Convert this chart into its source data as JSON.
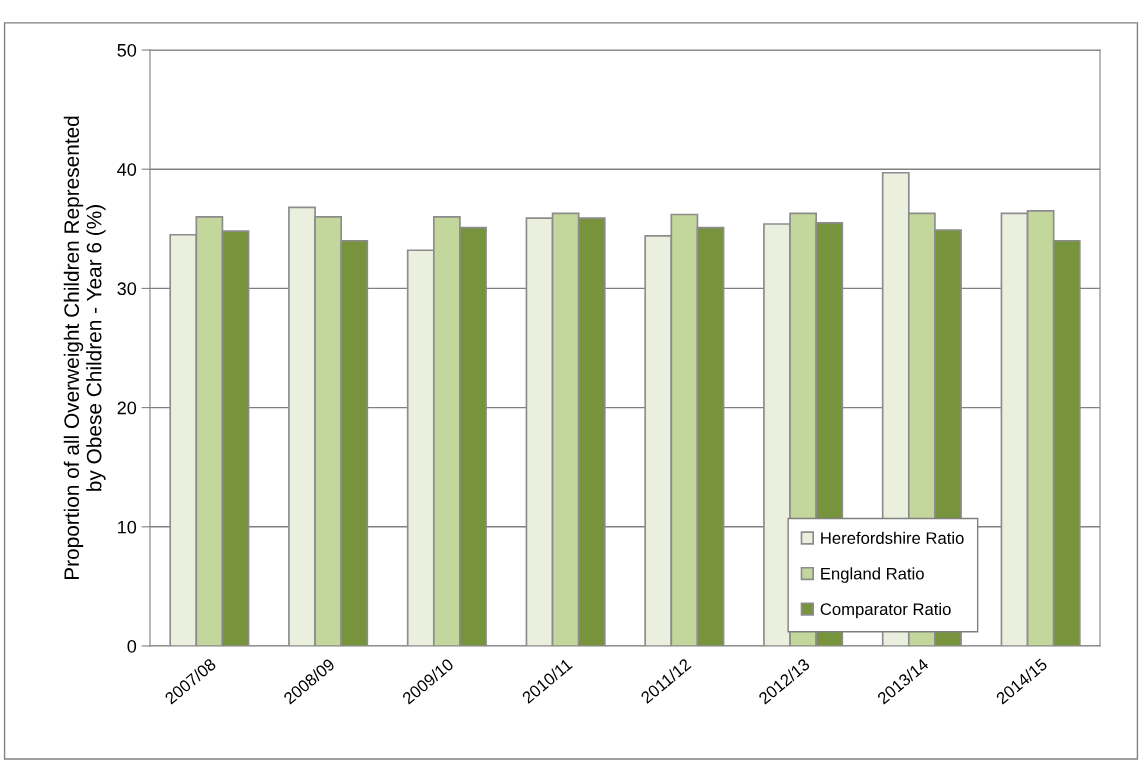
{
  "chart_data": {
    "type": "bar",
    "ylabel": "Proportion of all Overweight Children Represented\nby Obese Children - Year 6 (%)",
    "categories": [
      "2007/08",
      "2008/09",
      "2009/10",
      "2010/11",
      "2011/12",
      "2012/13",
      "2013/14",
      "2014/15"
    ],
    "series": [
      {
        "name": "Herefordshire Ratio",
        "color": "#ebf0de",
        "values": [
          34.5,
          36.8,
          33.2,
          35.9,
          34.4,
          35.4,
          39.7,
          36.3
        ]
      },
      {
        "name": "England Ratio",
        "color": "#c3d69b",
        "values": [
          36.0,
          36.0,
          36.0,
          36.3,
          36.2,
          36.3,
          36.3,
          36.5
        ]
      },
      {
        "name": "Comparator Ratio",
        "color": "#77933c",
        "values": [
          34.8,
          34.0,
          35.1,
          35.9,
          35.1,
          35.5,
          34.9,
          34.0
        ]
      }
    ],
    "ylim": [
      0,
      50
    ],
    "yticks": [
      0,
      10,
      20,
      30,
      40,
      50
    ],
    "grid": "y",
    "legend": "bottom right"
  }
}
